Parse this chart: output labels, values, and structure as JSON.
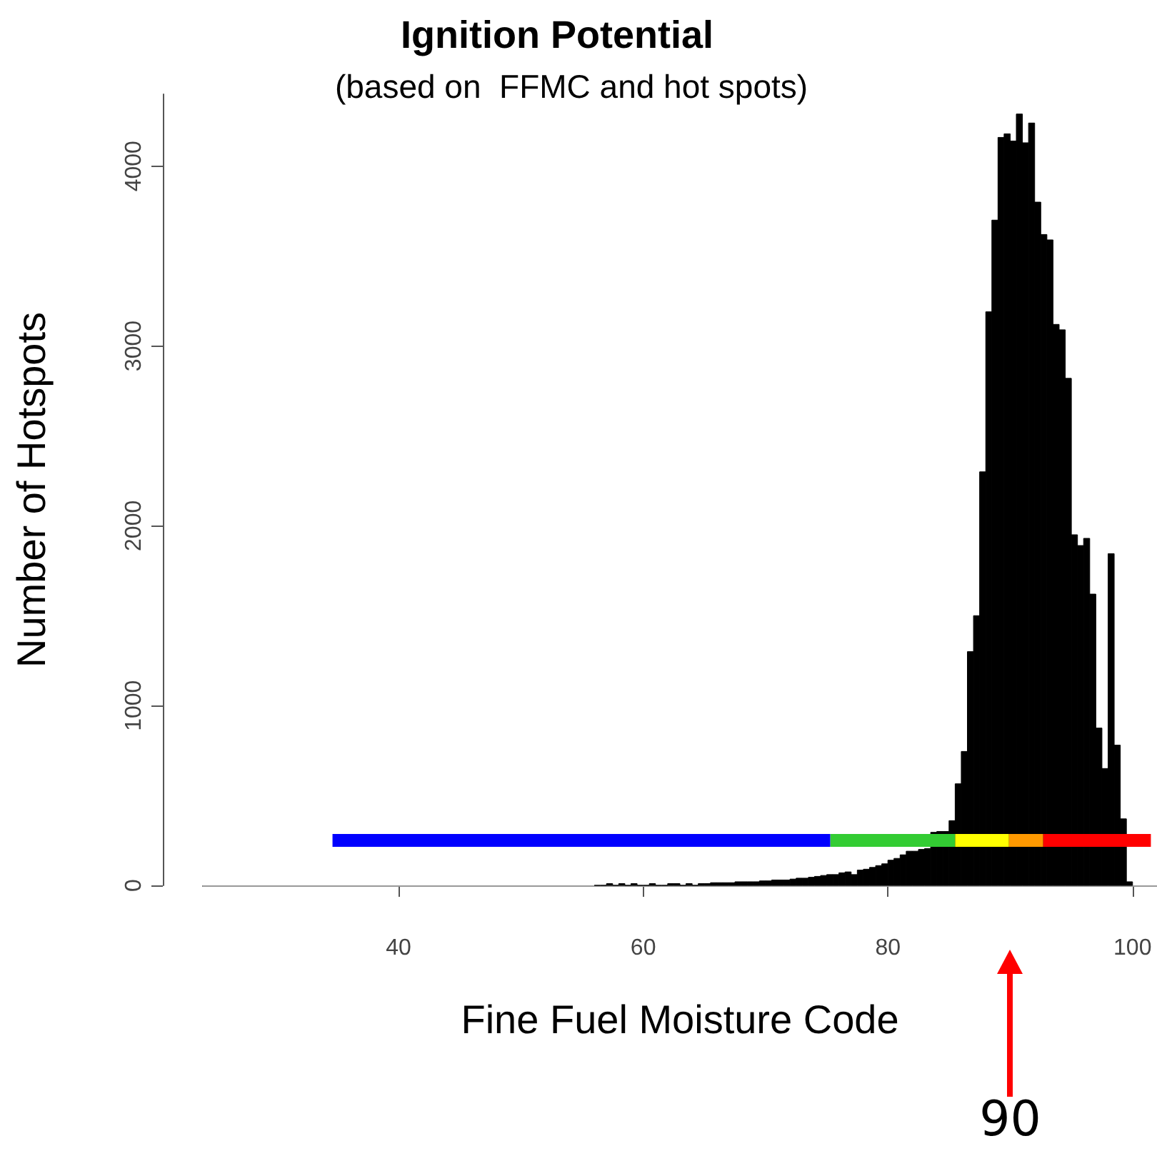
{
  "chart_data": {
    "type": "histogram",
    "title": "Ignition Potential",
    "subtitle": "(based on  FFMC and hot spots)",
    "xlabel": "Fine Fuel Moisture Code",
    "ylabel": "Number of Hotspots",
    "bins": [
      56,
      56.5,
      57,
      57.5,
      58,
      58.5,
      59,
      59.5,
      60,
      60.5,
      61,
      61.5,
      62,
      62.5,
      63,
      63.5,
      64,
      64.5,
      65,
      65.5,
      66,
      66.5,
      67,
      67.5,
      68,
      68.5,
      69,
      69.5,
      70,
      70.5,
      71,
      71.5,
      72,
      72.5,
      73,
      73.5,
      74,
      74.5,
      75,
      75.5,
      76,
      76.5,
      77,
      77.5,
      78,
      78.5,
      79,
      79.5,
      80,
      80.5,
      81,
      81.5,
      82,
      82.5,
      83,
      83.5,
      84,
      84.5,
      85,
      85.5,
      86,
      86.5,
      87,
      87.5,
      88,
      88.5,
      89,
      89.5,
      90,
      90.5,
      91,
      91.5,
      92,
      92.5,
      93,
      93.5,
      94,
      94.5,
      95,
      95.5,
      96,
      96.5,
      97,
      97.5,
      98,
      98.5,
      99,
      99.5,
      100
    ],
    "values": [
      0,
      0,
      10,
      0,
      10,
      0,
      10,
      0,
      0,
      10,
      0,
      0,
      10,
      10,
      0,
      10,
      0,
      10,
      10,
      15,
      15,
      15,
      15,
      20,
      20,
      20,
      20,
      25,
      25,
      30,
      30,
      30,
      35,
      40,
      40,
      45,
      50,
      55,
      60,
      60,
      70,
      75,
      60,
      85,
      90,
      100,
      110,
      120,
      140,
      150,
      170,
      190,
      190,
      200,
      205,
      295,
      300,
      300,
      360,
      565,
      745,
      1300,
      1500,
      2300,
      3190,
      3700,
      4160,
      4180,
      4140,
      4290,
      4130,
      4240,
      3800,
      3620,
      3590,
      3120,
      3090,
      2820,
      1950,
      1890,
      1930,
      1620,
      875,
      650,
      1845,
      780,
      370,
      20
    ],
    "color": "#000000",
    "series": [
      {
        "type": "line",
        "x": [
          34.6,
          75.3
        ],
        "values": [
          250,
          250
        ],
        "color": "#0000ff"
      },
      {
        "type": "line",
        "x": [
          75.3,
          85.5
        ],
        "values": [
          250,
          250
        ],
        "color": "#33cc33"
      },
      {
        "type": "line",
        "x": [
          85.5,
          89.9
        ],
        "values": [
          250,
          250
        ],
        "color": "#ffff00"
      },
      {
        "type": "line",
        "x": [
          89.9,
          92.7
        ],
        "values": [
          250,
          250
        ],
        "color": "#ff9900"
      },
      {
        "type": "line",
        "x": [
          92.7,
          101.5
        ],
        "values": [
          250,
          250
        ],
        "color": "#ff0000"
      }
    ],
    "marker": "none",
    "ref_lines": [
      {
        "axis": "y",
        "value": 0,
        "color": "#999999"
      }
    ],
    "annotations": [
      "90"
    ],
    "xlim": [
      24,
      102
    ],
    "xticks": [
      40,
      60,
      80,
      100
    ],
    "ylim": [
      0,
      4400
    ],
    "yticks": [
      0,
      1000,
      2000,
      3000,
      4000
    ],
    "grid": false
  }
}
